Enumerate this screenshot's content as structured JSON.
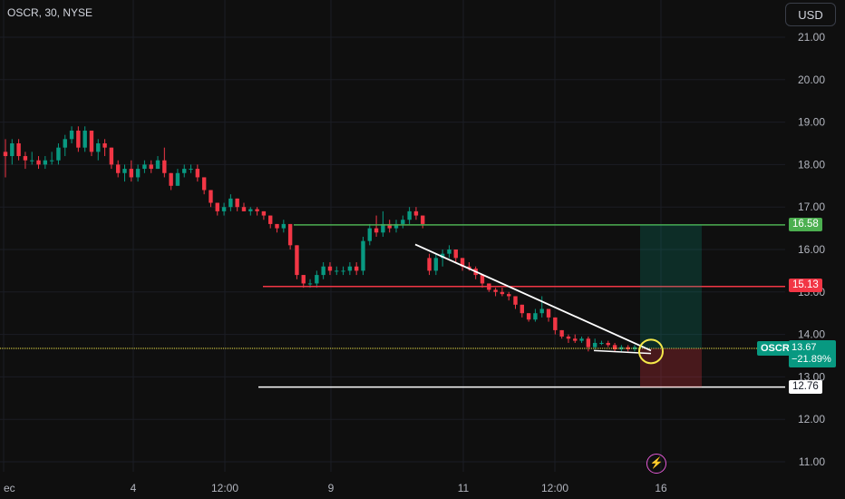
{
  "header": {
    "symbol_title": "OSCR, 30, NYSE",
    "currency_button": "USD"
  },
  "chart_data": {
    "type": "candlestick",
    "y_ticks": [
      "21.00",
      "20.00",
      "19.00",
      "18.00",
      "17.00",
      "16.00",
      "15.00",
      "14.00",
      "13.00",
      "12.00",
      "11.00"
    ],
    "x_ticks": [
      {
        "label": "ec",
        "x": 0
      },
      {
        "label": "4",
        "x": 1
      },
      {
        "label": "12:00",
        "x": 2
      },
      {
        "label": "9",
        "x": 3
      },
      {
        "label": "11",
        "x": 4
      },
      {
        "label": "12:00",
        "x": 5
      },
      {
        "label": "16",
        "x": 6
      }
    ],
    "ylim": [
      10.75,
      21.5
    ],
    "price_levels": [
      {
        "name": "take-profit-level",
        "value": 16.58,
        "label": "16.58",
        "color": "#4caf50"
      },
      {
        "name": "resistance-level",
        "value": 15.13,
        "label": "15.13",
        "color": "#f23645"
      },
      {
        "name": "current-price-level",
        "value": 13.67,
        "color": "#f5e94a"
      },
      {
        "name": "support-level",
        "value": 12.76,
        "label": "12.76",
        "color": "#ffffff"
      }
    ],
    "last_price": {
      "ticker": "OSCR",
      "price": "13.67",
      "change": "−21.89%"
    },
    "candles": [
      [
        18.3,
        18.6,
        17.7,
        18.2
      ],
      [
        18.2,
        18.6,
        18.0,
        18.5
      ],
      [
        18.5,
        18.6,
        18.1,
        18.2
      ],
      [
        18.2,
        18.3,
        17.9,
        18.1
      ],
      [
        18.1,
        18.3,
        18.0,
        18.1
      ],
      [
        18.1,
        18.2,
        17.9,
        18.0
      ],
      [
        18.0,
        18.2,
        17.9,
        18.1
      ],
      [
        18.1,
        18.3,
        18.0,
        18.1
      ],
      [
        18.1,
        18.5,
        18.0,
        18.4
      ],
      [
        18.4,
        18.7,
        18.2,
        18.6
      ],
      [
        18.6,
        18.9,
        18.5,
        18.8
      ],
      [
        18.8,
        18.9,
        18.3,
        18.4
      ],
      [
        18.4,
        18.9,
        18.3,
        18.8
      ],
      [
        18.8,
        18.8,
        18.2,
        18.3
      ],
      [
        18.3,
        18.6,
        18.1,
        18.5
      ],
      [
        18.5,
        18.6,
        18.2,
        18.4
      ],
      [
        18.4,
        18.4,
        17.9,
        18.0
      ],
      [
        18.0,
        18.1,
        17.7,
        17.8
      ],
      [
        17.8,
        18.0,
        17.6,
        17.9
      ],
      [
        17.9,
        18.1,
        17.6,
        17.7
      ],
      [
        17.7,
        18.0,
        17.6,
        17.9
      ],
      [
        17.9,
        18.1,
        17.8,
        18.0
      ],
      [
        18.0,
        18.1,
        17.8,
        17.9
      ],
      [
        17.9,
        18.2,
        17.9,
        18.1
      ],
      [
        18.1,
        18.4,
        17.7,
        17.8
      ],
      [
        17.8,
        17.8,
        17.4,
        17.5
      ],
      [
        17.5,
        17.9,
        17.5,
        17.8
      ],
      [
        17.8,
        18.0,
        17.7,
        17.9
      ],
      [
        17.9,
        18.0,
        17.8,
        17.9
      ],
      [
        17.9,
        18.0,
        17.6,
        17.7
      ],
      [
        17.7,
        17.7,
        17.3,
        17.4
      ],
      [
        17.4,
        17.4,
        17.0,
        17.1
      ],
      [
        17.1,
        17.1,
        16.8,
        16.9
      ],
      [
        16.9,
        17.1,
        16.8,
        17.0
      ],
      [
        17.0,
        17.3,
        16.9,
        17.2
      ],
      [
        17.2,
        17.2,
        16.9,
        17.0
      ],
      [
        17.0,
        17.1,
        16.9,
        16.9
      ],
      [
        16.9,
        17.0,
        16.8,
        16.95
      ],
      [
        16.95,
        17.0,
        16.8,
        16.9
      ],
      [
        16.9,
        16.9,
        16.7,
        16.8
      ],
      [
        16.8,
        16.8,
        16.5,
        16.6
      ],
      [
        16.6,
        16.6,
        16.4,
        16.5
      ],
      [
        16.5,
        16.7,
        16.4,
        16.6
      ],
      [
        16.6,
        16.6,
        16.0,
        16.1
      ],
      [
        16.1,
        16.1,
        15.3,
        15.4
      ],
      [
        15.4,
        15.4,
        15.1,
        15.2
      ],
      [
        15.2,
        15.3,
        15.1,
        15.2
      ],
      [
        15.2,
        15.5,
        15.1,
        15.4
      ],
      [
        15.4,
        15.7,
        15.3,
        15.6
      ],
      [
        15.6,
        15.7,
        15.4,
        15.5
      ],
      [
        15.5,
        15.6,
        15.4,
        15.5
      ],
      [
        15.5,
        15.6,
        15.4,
        15.5
      ],
      [
        15.5,
        15.7,
        15.4,
        15.6
      ],
      [
        15.6,
        15.7,
        15.4,
        15.5
      ],
      [
        15.5,
        16.3,
        15.4,
        16.2
      ],
      [
        16.2,
        16.6,
        16.1,
        16.5
      ],
      [
        16.5,
        16.8,
        16.3,
        16.4
      ],
      [
        16.4,
        16.9,
        16.3,
        16.6
      ],
      [
        16.6,
        16.7,
        16.4,
        16.5
      ],
      [
        16.5,
        16.7,
        16.4,
        16.6
      ],
      [
        16.6,
        16.8,
        16.5,
        16.7
      ],
      [
        16.7,
        17.0,
        16.6,
        16.9
      ],
      [
        16.9,
        17.0,
        16.7,
        16.8
      ],
      [
        16.8,
        16.8,
        16.5,
        16.6
      ],
      [
        15.8,
        15.9,
        15.4,
        15.5
      ],
      [
        15.5,
        15.9,
        15.4,
        15.8
      ],
      [
        15.8,
        16.0,
        15.6,
        15.9
      ],
      [
        15.9,
        16.1,
        15.8,
        16.0
      ],
      [
        16.0,
        16.0,
        15.7,
        15.8
      ],
      [
        15.8,
        15.8,
        15.5,
        15.6
      ],
      [
        15.6,
        15.7,
        15.5,
        15.55
      ],
      [
        15.55,
        15.6,
        15.3,
        15.4
      ],
      [
        15.4,
        15.4,
        15.1,
        15.2
      ],
      [
        15.2,
        15.2,
        15.0,
        15.05
      ],
      [
        15.05,
        15.1,
        14.9,
        15.0
      ],
      [
        15.0,
        15.1,
        14.9,
        14.95
      ],
      [
        14.95,
        15.0,
        14.8,
        14.9
      ],
      [
        14.9,
        14.9,
        14.6,
        14.7
      ],
      [
        14.7,
        14.7,
        14.4,
        14.5
      ],
      [
        14.5,
        14.5,
        14.3,
        14.35
      ],
      [
        14.35,
        14.6,
        14.3,
        14.5
      ],
      [
        14.5,
        14.9,
        14.4,
        14.6
      ],
      [
        14.6,
        14.6,
        14.3,
        14.4
      ],
      [
        14.4,
        14.4,
        14.0,
        14.1
      ],
      [
        14.1,
        14.1,
        13.9,
        13.95
      ],
      [
        13.95,
        14.0,
        13.8,
        13.9
      ],
      [
        13.9,
        14.0,
        13.8,
        13.85
      ],
      [
        13.85,
        13.95,
        13.8,
        13.9
      ],
      [
        13.9,
        13.95,
        13.6,
        13.7
      ],
      [
        13.7,
        13.9,
        13.65,
        13.8
      ],
      [
        13.8,
        13.85,
        13.75,
        13.8
      ],
      [
        13.8,
        13.85,
        13.7,
        13.75
      ],
      [
        13.75,
        13.8,
        13.6,
        13.65
      ],
      [
        13.65,
        13.75,
        13.6,
        13.7
      ],
      [
        13.7,
        13.75,
        13.6,
        13.65
      ],
      [
        13.65,
        13.75,
        13.6,
        13.7
      ]
    ]
  }
}
